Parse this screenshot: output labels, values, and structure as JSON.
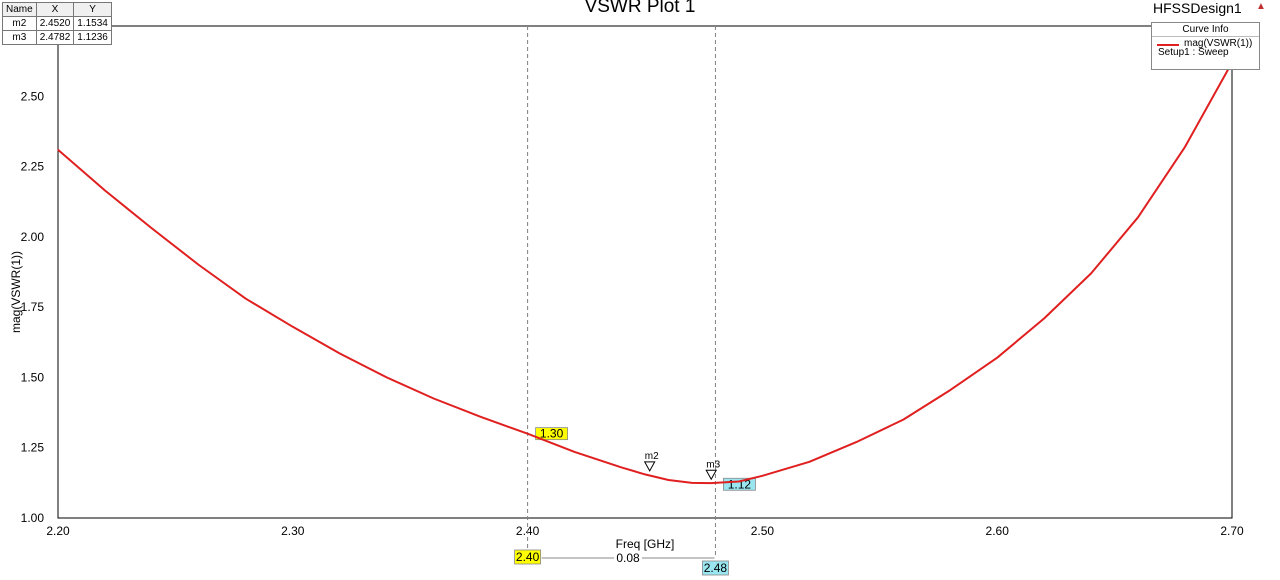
{
  "chart_data": {
    "type": "line",
    "title": "VSWR Plot 1",
    "xlabel": "Freq [GHz]",
    "ylabel": "mag(VSWR(1))",
    "xlim": [
      2.2,
      2.7
    ],
    "ylim": [
      1.0,
      2.75
    ],
    "x_ticks": [
      "2.20",
      "2.30",
      "2.40",
      "2.50",
      "2.60",
      "2.70"
    ],
    "y_ticks": [
      "1.00",
      "1.25",
      "1.50",
      "1.75",
      "2.00",
      "2.25",
      "2.50"
    ],
    "grid": true,
    "series": [
      {
        "name": "mag(VSWR(1))",
        "color": "#e02020",
        "x": [
          2.2,
          2.22,
          2.24,
          2.26,
          2.28,
          2.3,
          2.32,
          2.34,
          2.36,
          2.38,
          2.4,
          2.42,
          2.44,
          2.45,
          2.46,
          2.47,
          2.478,
          2.49,
          2.5,
          2.52,
          2.54,
          2.56,
          2.58,
          2.6,
          2.62,
          2.64,
          2.66,
          2.68,
          2.7
        ],
        "y": [
          2.31,
          2.165,
          2.03,
          1.9,
          1.78,
          1.68,
          1.585,
          1.5,
          1.425,
          1.36,
          1.3,
          1.235,
          1.18,
          1.155,
          1.135,
          1.125,
          1.124,
          1.13,
          1.15,
          1.2,
          1.27,
          1.35,
          1.455,
          1.57,
          1.71,
          1.87,
          2.07,
          2.32,
          2.62
        ]
      }
    ],
    "markers": [
      {
        "name": "m2",
        "x": 2.452,
        "y": 1.1534,
        "x_text": "2.4520",
        "y_text": "1.1534"
      },
      {
        "name": "m3",
        "x": 2.4782,
        "y": 1.1236,
        "x_text": "2.4782",
        "y_text": "1.1236"
      }
    ],
    "cursors": [
      {
        "x": 2.4,
        "label": "2.40",
        "value_label": "1.30",
        "value": 1.3,
        "color": "#ffff00"
      },
      {
        "x": 2.48,
        "label": "2.48",
        "value_label": "1.12",
        "value": 1.12,
        "color": "#99e6f0"
      }
    ],
    "delta_label": "0.08"
  },
  "marker_table": {
    "headers": [
      "Name",
      "X",
      "Y"
    ]
  },
  "design_name": "HFSSDesign1",
  "curve_info": {
    "title": "Curve Info",
    "trace": "mag(VSWR(1))",
    "setup": "Setup1 : Sweep"
  }
}
